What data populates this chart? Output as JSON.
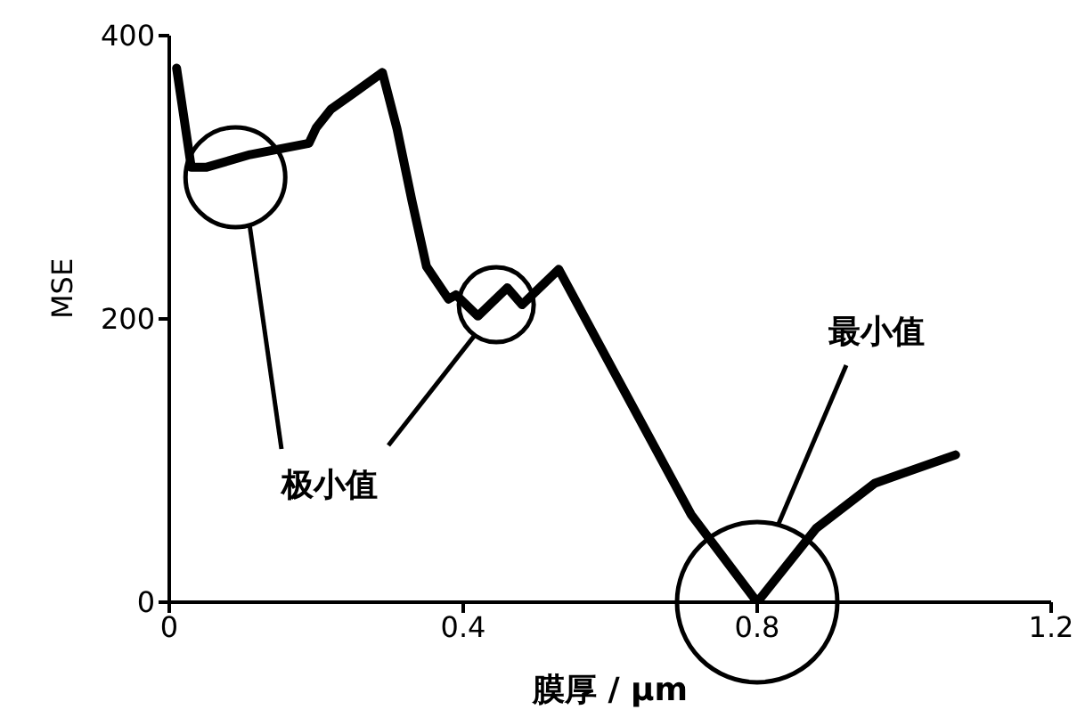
{
  "chart_data": {
    "type": "line",
    "xlabel": "膜厚 / μm",
    "ylabel": "MSE",
    "x": [
      0.01,
      0.03,
      0.05,
      0.11,
      0.19,
      0.2,
      0.22,
      0.25,
      0.29,
      0.31,
      0.33,
      0.35,
      0.38,
      0.39,
      0.42,
      0.46,
      0.48,
      0.53,
      0.61,
      0.71,
      0.8,
      0.88,
      0.96,
      1.07
    ],
    "series": [
      {
        "color": "#000000",
        "values": [
          377,
          307,
          307,
          316,
          324,
          335,
          348,
          359,
          374,
          334,
          284,
          237,
          214,
          217,
          202,
          222,
          210,
          235,
          158,
          62,
          0,
          52,
          84,
          104
        ]
      }
    ],
    "xlim": [
      0,
      1.2
    ],
    "xticks": [
      0,
      0.4,
      0.8,
      1.2
    ],
    "ylim": [
      0,
      400
    ],
    "yticks": [
      0,
      200,
      400
    ],
    "grid": false,
    "legend": false,
    "marker": "none",
    "line_style": "solid",
    "annotations": [
      "极小值",
      "最小值"
    ]
  }
}
